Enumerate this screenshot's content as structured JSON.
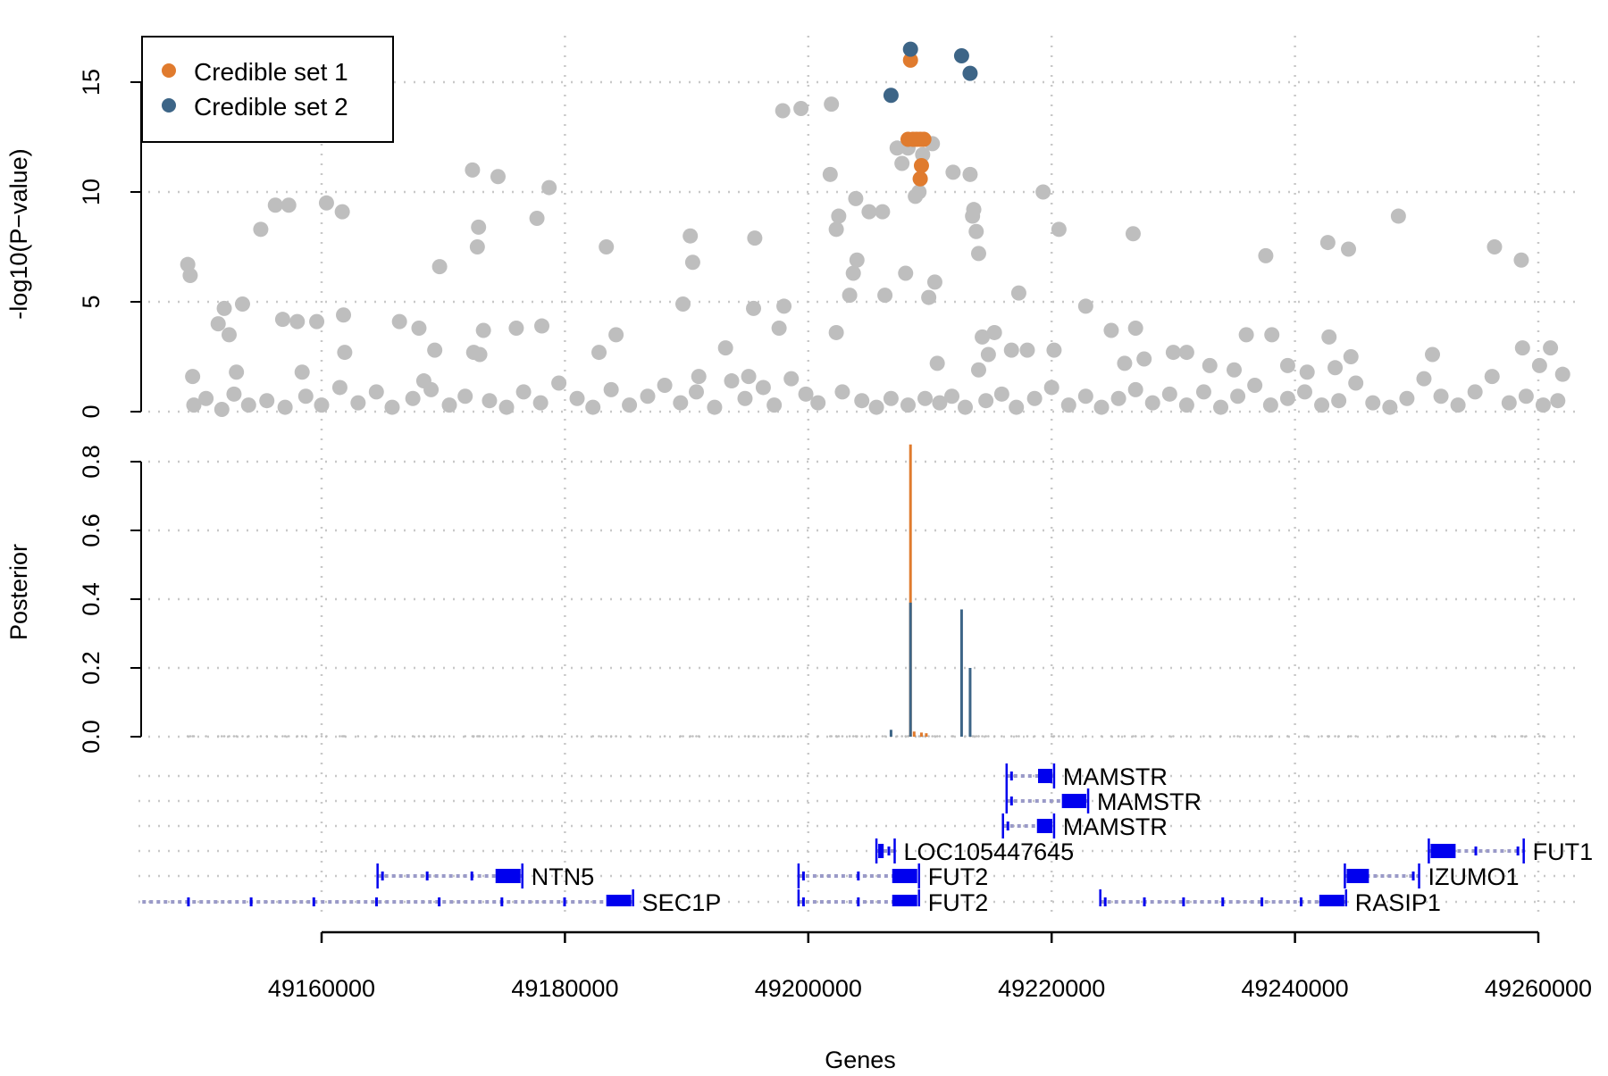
{
  "chart_data": [
    {
      "panel": "association",
      "type": "scatter",
      "ylabel": "-log10(P−value)",
      "ylim": [
        0,
        17
      ],
      "y_ticks": [
        "0",
        "5",
        "10",
        "15"
      ],
      "y_tick_values": [
        0,
        5,
        10,
        15
      ],
      "xlim": [
        49143500,
        49262000
      ],
      "grid": true,
      "legend": {
        "placement": "top-left",
        "entries": [
          {
            "label": "Credible set 1",
            "color": "#E07B2E"
          },
          {
            "label": "Credible set 2",
            "color": "#3D6587"
          }
        ]
      },
      "background_color": "#BEBEBE",
      "series": [
        {
          "name": "Credible set 1",
          "color": "#E07B2E",
          "points": [
            [
              49208400,
              16.0
            ],
            [
              49208200,
              12.4
            ],
            [
              49208600,
              12.4
            ],
            [
              49208900,
              12.4
            ],
            [
              49209200,
              12.4
            ],
            [
              49209500,
              12.4
            ],
            [
              49209300,
              11.2
            ],
            [
              49209200,
              10.6
            ]
          ]
        },
        {
          "name": "Credible set 2",
          "color": "#3D6587",
          "points": [
            [
              49208400,
              16.5
            ],
            [
              49212600,
              16.2
            ],
            [
              49213300,
              15.4
            ],
            [
              49206800,
              14.4
            ]
          ]
        },
        {
          "name": "",
          "color": "#BEBEBE",
          "points": [
            [
              49149000,
              6.7
            ],
            [
              49149200,
              6.2
            ],
            [
              49149400,
              1.6
            ],
            [
              49152000,
              4.7
            ],
            [
              49151500,
              4.0
            ],
            [
              49152400,
              3.5
            ],
            [
              49153500,
              4.9
            ],
            [
              49153000,
              1.8
            ],
            [
              49155000,
              8.3
            ],
            [
              49156200,
              9.4
            ],
            [
              49157300,
              9.4
            ],
            [
              49156800,
              4.2
            ],
            [
              49158000,
              4.1
            ],
            [
              49158400,
              1.8
            ],
            [
              49159600,
              4.1
            ],
            [
              49160400,
              9.5
            ],
            [
              49161700,
              9.1
            ],
            [
              49161800,
              4.4
            ],
            [
              49161900,
              2.7
            ],
            [
              49166400,
              4.1
            ],
            [
              49168000,
              3.8
            ],
            [
              49168400,
              1.4
            ],
            [
              49169700,
              6.6
            ],
            [
              49169300,
              2.8
            ],
            [
              49172400,
              11.0
            ],
            [
              49172900,
              8.4
            ],
            [
              49172800,
              7.5
            ],
            [
              49172500,
              2.7
            ],
            [
              49173300,
              3.7
            ],
            [
              49173000,
              2.6
            ],
            [
              49174500,
              10.7
            ],
            [
              49176000,
              3.8
            ],
            [
              49177700,
              8.8
            ],
            [
              49178100,
              3.9
            ],
            [
              49178700,
              10.2
            ],
            [
              49183400,
              7.5
            ],
            [
              49182800,
              2.7
            ],
            [
              49184200,
              3.5
            ],
            [
              49190300,
              8.0
            ],
            [
              49190500,
              6.8
            ],
            [
              49189700,
              4.9
            ],
            [
              49191000,
              1.6
            ],
            [
              49193200,
              2.9
            ],
            [
              49195600,
              7.9
            ],
            [
              49195500,
              4.7
            ],
            [
              49195100,
              1.6
            ],
            [
              49197900,
              13.7
            ],
            [
              49198000,
              4.8
            ],
            [
              49197600,
              3.8
            ],
            [
              49199400,
              13.8
            ],
            [
              49201900,
              14.0
            ],
            [
              49202300,
              3.6
            ],
            [
              49201800,
              10.8
            ],
            [
              49202300,
              8.3
            ],
            [
              49202500,
              8.9
            ],
            [
              49203900,
              9.7
            ],
            [
              49204000,
              6.9
            ],
            [
              49203700,
              6.3
            ],
            [
              49203400,
              5.3
            ],
            [
              49205000,
              9.1
            ],
            [
              49206100,
              9.1
            ],
            [
              49206300,
              5.3
            ],
            [
              49207300,
              12.0
            ],
            [
              49207700,
              11.3
            ],
            [
              49208000,
              6.3
            ],
            [
              49208200,
              12.0
            ],
            [
              49208800,
              9.8
            ],
            [
              49209200,
              10.6
            ],
            [
              49209100,
              10.0
            ],
            [
              49209400,
              11.7
            ],
            [
              49210200,
              12.2
            ],
            [
              49209900,
              5.2
            ],
            [
              49210400,
              5.9
            ],
            [
              49210600,
              2.2
            ],
            [
              49211900,
              10.9
            ],
            [
              49213300,
              10.8
            ],
            [
              49213500,
              8.9
            ],
            [
              49213600,
              9.2
            ],
            [
              49213800,
              8.2
            ],
            [
              49214000,
              7.2
            ],
            [
              49214300,
              3.4
            ],
            [
              49215300,
              3.6
            ],
            [
              49214800,
              2.6
            ],
            [
              49214000,
              1.9
            ],
            [
              49217300,
              5.4
            ],
            [
              49216700,
              2.8
            ],
            [
              49218000,
              2.8
            ],
            [
              49219300,
              10.0
            ],
            [
              49220200,
              2.8
            ],
            [
              49220600,
              8.3
            ],
            [
              49222800,
              4.8
            ],
            [
              49224900,
              3.7
            ],
            [
              49226000,
              2.2
            ],
            [
              49226700,
              8.1
            ],
            [
              49226900,
              3.8
            ],
            [
              49227600,
              2.4
            ],
            [
              49230000,
              2.7
            ],
            [
              49231100,
              2.7
            ],
            [
              49233000,
              2.1
            ],
            [
              49235000,
              1.9
            ],
            [
              49236000,
              3.5
            ],
            [
              49237600,
              7.1
            ],
            [
              49238100,
              3.5
            ],
            [
              49239400,
              2.1
            ],
            [
              49241000,
              1.8
            ],
            [
              49242700,
              7.7
            ],
            [
              49242800,
              3.4
            ],
            [
              49243300,
              2.0
            ],
            [
              49244400,
              7.4
            ],
            [
              49244600,
              2.5
            ],
            [
              49248500,
              8.9
            ],
            [
              49251300,
              2.6
            ],
            [
              49256400,
              7.5
            ],
            [
              49258600,
              6.9
            ],
            [
              49258700,
              2.9
            ],
            [
              49261000,
              2.9
            ],
            [
              49260100,
              2.1
            ],
            [
              49262000,
              1.7
            ],
            [
              49149500,
              0.3
            ],
            [
              49150500,
              0.6
            ],
            [
              49151800,
              0.1
            ],
            [
              49152800,
              0.8
            ],
            [
              49154000,
              0.3
            ],
            [
              49155500,
              0.5
            ],
            [
              49157000,
              0.2
            ],
            [
              49158700,
              0.7
            ],
            [
              49160000,
              0.3
            ],
            [
              49161500,
              1.1
            ],
            [
              49163000,
              0.4
            ],
            [
              49164500,
              0.9
            ],
            [
              49165800,
              0.2
            ],
            [
              49167500,
              0.6
            ],
            [
              49169000,
              1.0
            ],
            [
              49170500,
              0.3
            ],
            [
              49171800,
              0.7
            ],
            [
              49173800,
              0.5
            ],
            [
              49175200,
              0.2
            ],
            [
              49176600,
              0.9
            ],
            [
              49178000,
              0.4
            ],
            [
              49179500,
              1.3
            ],
            [
              49181000,
              0.6
            ],
            [
              49182300,
              0.2
            ],
            [
              49183800,
              1.0
            ],
            [
              49185300,
              0.3
            ],
            [
              49186800,
              0.7
            ],
            [
              49188200,
              1.2
            ],
            [
              49189500,
              0.4
            ],
            [
              49190800,
              0.9
            ],
            [
              49192300,
              0.2
            ],
            [
              49193700,
              1.4
            ],
            [
              49194800,
              0.6
            ],
            [
              49196300,
              1.1
            ],
            [
              49197200,
              0.3
            ],
            [
              49198600,
              1.5
            ],
            [
              49199800,
              0.8
            ],
            [
              49200800,
              0.4
            ],
            [
              49202800,
              0.9
            ],
            [
              49204400,
              0.5
            ],
            [
              49205600,
              0.2
            ],
            [
              49206800,
              0.6
            ],
            [
              49208200,
              0.3
            ],
            [
              49209600,
              0.6
            ],
            [
              49210800,
              0.4
            ],
            [
              49211800,
              0.7
            ],
            [
              49212900,
              0.2
            ],
            [
              49214600,
              0.5
            ],
            [
              49215900,
              0.8
            ],
            [
              49217100,
              0.2
            ],
            [
              49218600,
              0.6
            ],
            [
              49220000,
              1.1
            ],
            [
              49221400,
              0.3
            ],
            [
              49222800,
              0.7
            ],
            [
              49224100,
              0.2
            ],
            [
              49225500,
              0.6
            ],
            [
              49226900,
              1.0
            ],
            [
              49228300,
              0.4
            ],
            [
              49229700,
              0.8
            ],
            [
              49231100,
              0.3
            ],
            [
              49232500,
              0.9
            ],
            [
              49233900,
              0.2
            ],
            [
              49235300,
              0.7
            ],
            [
              49236700,
              1.2
            ],
            [
              49238000,
              0.3
            ],
            [
              49239400,
              0.6
            ],
            [
              49240800,
              0.9
            ],
            [
              49242200,
              0.3
            ],
            [
              49243600,
              0.5
            ],
            [
              49245000,
              1.3
            ],
            [
              49246400,
              0.4
            ],
            [
              49247800,
              0.2
            ],
            [
              49249200,
              0.6
            ],
            [
              49250600,
              1.5
            ],
            [
              49252000,
              0.7
            ],
            [
              49253400,
              0.3
            ],
            [
              49254800,
              0.9
            ],
            [
              49256200,
              1.6
            ],
            [
              49257600,
              0.4
            ],
            [
              49259000,
              0.7
            ],
            [
              49260400,
              0.3
            ],
            [
              49261600,
              0.5
            ]
          ]
        }
      ]
    },
    {
      "panel": "posterior",
      "type": "bar",
      "ylabel": "Posterior",
      "ylim": [
        0,
        0.85
      ],
      "y_ticks": [
        "0.0",
        "0.2",
        "0.4",
        "0.6",
        "0.8"
      ],
      "y_tick_values": [
        0,
        0.2,
        0.4,
        0.6,
        0.8
      ],
      "grid": true,
      "series": [
        {
          "name": "Credible set 1",
          "color": "#E07B2E",
          "points": [
            [
              49208400,
              0.85
            ],
            [
              49208700,
              0.015
            ],
            [
              49209300,
              0.012
            ],
            [
              49209700,
              0.01
            ]
          ]
        },
        {
          "name": "Credible set 2",
          "color": "#3D6587",
          "points": [
            [
              49208400,
              0.39
            ],
            [
              49212600,
              0.37
            ],
            [
              49213300,
              0.2
            ],
            [
              49206800,
              0.02
            ]
          ]
        }
      ]
    },
    {
      "panel": "genes",
      "type": "gene-track",
      "xlabel": "Genes",
      "x_ticks": [
        "49160000",
        "49180000",
        "49200000",
        "49220000",
        "49240000",
        "49260000"
      ],
      "x_tick_values": [
        49160000,
        49180000,
        49200000,
        49220000,
        49240000,
        49260000
      ],
      "track_color": "#0000EE",
      "genes": [
        {
          "name": "MAMSTR",
          "start": 49216300,
          "end": 49220200,
          "row": 0
        },
        {
          "name": "MAMSTR",
          "start": 49216300,
          "end": 49223000,
          "row": 1
        },
        {
          "name": "MAMSTR",
          "start": 49216000,
          "end": 49220200,
          "row": 2
        },
        {
          "name": "LOC105447645",
          "start": 49205600,
          "end": 49207100,
          "row": 3
        },
        {
          "name": "FUT1",
          "start": 49251000,
          "end": 49258800,
          "row": 3
        },
        {
          "name": "NTN5",
          "start": 49164600,
          "end": 49176500,
          "row": 4
        },
        {
          "name": "FUT2",
          "start": 49199200,
          "end": 49209100,
          "row": 4
        },
        {
          "name": "IZUMO1",
          "start": 49244100,
          "end": 49250200,
          "row": 4
        },
        {
          "name": "SEC1P",
          "start": 49143500,
          "end": 49185600,
          "row": 5
        },
        {
          "name": "FUT2",
          "start": 49199200,
          "end": 49209100,
          "row": 5
        },
        {
          "name": "RASIP1",
          "start": 49224000,
          "end": 49244200,
          "row": 5
        }
      ]
    }
  ]
}
